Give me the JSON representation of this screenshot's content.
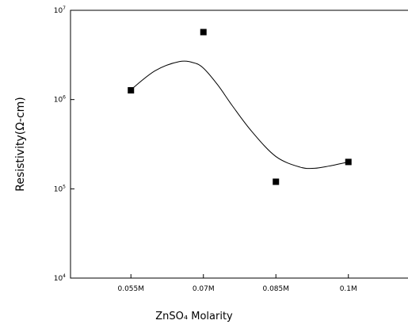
{
  "chart_data": {
    "type": "scatter",
    "title": "",
    "xlabel": "ZnSO₄ Molarity",
    "ylabel": "Resistivity(Ω-cm)",
    "x_categories": [
      "0.055M",
      "0.07M",
      "0.085M",
      "0.1M"
    ],
    "x": [
      0.055,
      0.07,
      0.085,
      0.1
    ],
    "xlim": [
      0.0425,
      0.1125
    ],
    "y_scale": "log",
    "ylim": [
      10000,
      10000000
    ],
    "y_ticks": [
      {
        "exp": "4",
        "value": 10000
      },
      {
        "exp": "5",
        "value": 100000
      },
      {
        "exp": "6",
        "value": 1000000
      },
      {
        "exp": "7",
        "value": 10000000
      }
    ],
    "y_tick_base": "10",
    "series": [
      {
        "values": [
          1270000,
          5700000,
          120000,
          200000
        ],
        "marker": "square",
        "color": "#000000"
      }
    ],
    "fit_curve": {
      "type": "spline",
      "x": [
        0.055,
        0.06,
        0.065,
        0.068,
        0.07,
        0.073,
        0.076,
        0.08,
        0.085,
        0.09,
        0.093,
        0.096,
        0.1
      ],
      "values": [
        1290000,
        2100000,
        2660000,
        2580000,
        2250000,
        1450000,
        850000,
        440000,
        230000,
        175000,
        170000,
        180000,
        200000
      ],
      "color": "#000000"
    },
    "grid": false,
    "legend": "none"
  }
}
